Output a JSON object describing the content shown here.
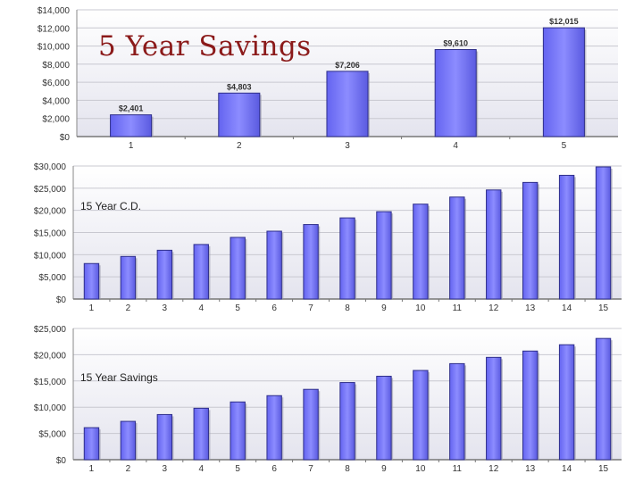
{
  "charts": {
    "five_year": {
      "title": "5 Year Savings",
      "chart_data": {
        "type": "bar",
        "title": "5 Year Savings",
        "categories": [
          "1",
          "2",
          "3",
          "4",
          "5"
        ],
        "values": [
          2401,
          4803,
          7206,
          9610,
          12015
        ],
        "data_labels": [
          "$2,401",
          "$4,803",
          "$7,206",
          "$9,610",
          "$12,015"
        ],
        "ylim": [
          0,
          14000
        ],
        "yticks": [
          0,
          2000,
          4000,
          6000,
          8000,
          10000,
          12000,
          14000
        ],
        "ytick_labels": [
          "$0",
          "$2,000",
          "$4,000",
          "$6,000",
          "$8,000",
          "$10,000",
          "$12,000",
          "$14,000"
        ],
        "grid": true,
        "bar_color": "#7b7bff"
      }
    },
    "fifteen_year_cd": {
      "title": "15 Year C.D.",
      "chart_data": {
        "type": "bar",
        "title": "15 Year C.D.",
        "categories": [
          "1",
          "2",
          "3",
          "4",
          "5",
          "6",
          "7",
          "8",
          "9",
          "10",
          "11",
          "12",
          "13",
          "14",
          "15"
        ],
        "values": [
          8000,
          9600,
          11000,
          12300,
          13900,
          15300,
          16800,
          18300,
          19700,
          21400,
          23000,
          24600,
          26300,
          27900,
          29800
        ],
        "ylim": [
          0,
          30000
        ],
        "yticks": [
          0,
          5000,
          10000,
          15000,
          20000,
          25000,
          30000
        ],
        "ytick_labels": [
          "$0",
          "$5,000",
          "$10,000",
          "$15,000",
          "$20,000",
          "$25,000",
          "$30,000"
        ],
        "grid": true,
        "bar_color": "#7b7bff"
      }
    },
    "fifteen_year_savings": {
      "title": "15 Year Savings",
      "chart_data": {
        "type": "bar",
        "title": "15 Year Savings",
        "categories": [
          "1",
          "2",
          "3",
          "4",
          "5",
          "6",
          "7",
          "8",
          "9",
          "10",
          "11",
          "12",
          "13",
          "14",
          "15"
        ],
        "values": [
          6100,
          7300,
          8600,
          9800,
          11000,
          12200,
          13400,
          14700,
          15900,
          17000,
          18300,
          19500,
          20700,
          21900,
          23100
        ],
        "ylim": [
          0,
          25000
        ],
        "yticks": [
          0,
          5000,
          10000,
          15000,
          20000,
          25000
        ],
        "ytick_labels": [
          "$0",
          "$5,000",
          "$10,000",
          "$15,000",
          "$20,000",
          "$25,000"
        ],
        "grid": true,
        "bar_color": "#7b7bff"
      }
    }
  }
}
